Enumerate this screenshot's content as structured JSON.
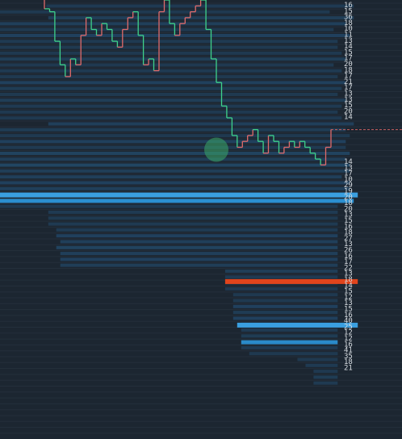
{
  "colors": {
    "background": "#1c2631",
    "grid": "#2a3642",
    "heatmap_dim": "#1f3a52",
    "heatmap_mid": "#24547a",
    "heatmap_bright": "#2b8fd0",
    "price_line_up": "#e06a6a",
    "price_line_down": "#3fd28a",
    "marker_fill": "#3aa868",
    "current_price_line": "#c86060",
    "large_ask_level": "#e0441c",
    "large_bid_level": "#3a9fe0",
    "axis_text": "#d8dde2"
  },
  "price_axis": {
    "labels_upper": [
      "16",
      "15",
      "36",
      "18",
      "10",
      "11",
      "13",
      "14",
      "15",
      "17",
      "20",
      "18",
      "17",
      "21",
      "17",
      "13",
      "13",
      "15",
      "20",
      "14"
    ],
    "labels_lower": [
      "14",
      "13",
      "17",
      "10",
      "29",
      "19",
      "20",
      "18",
      "20",
      "13",
      "15",
      "16",
      "18",
      "27",
      "13",
      "26",
      "16",
      "17",
      "22",
      "13",
      "18",
      "14",
      "15",
      "12",
      "13",
      "15",
      "16",
      "40",
      "25",
      "12",
      "12",
      "16",
      "41",
      "35",
      "18",
      "21"
    ]
  },
  "orderbook_levels": [
    {
      "start": 0.115,
      "end": 0.88,
      "intensity": 0.35
    },
    {
      "start": 0.0,
      "end": 0.82,
      "intensity": 0.3
    },
    {
      "start": 0.12,
      "end": 0.88,
      "intensity": 0.45
    },
    {
      "start": 0.0,
      "end": 0.86,
      "intensity": 0.5
    },
    {
      "start": 0.0,
      "end": 0.83,
      "intensity": 0.3
    },
    {
      "start": 0.0,
      "end": 0.87,
      "intensity": 0.55
    },
    {
      "start": 0.0,
      "end": 0.84,
      "intensity": 0.35
    },
    {
      "start": 0.0,
      "end": 0.84,
      "intensity": 0.3
    },
    {
      "start": 0.0,
      "end": 0.85,
      "intensity": 0.3
    },
    {
      "start": 0.0,
      "end": 0.86,
      "intensity": 0.45
    },
    {
      "start": 0.0,
      "end": 0.83,
      "intensity": 0.3
    },
    {
      "start": 0.0,
      "end": 0.85,
      "intensity": 0.35
    },
    {
      "start": 0.0,
      "end": 0.84,
      "intensity": 0.3
    },
    {
      "start": 0.0,
      "end": 0.86,
      "intensity": 0.55
    },
    {
      "start": 0.0,
      "end": 0.85,
      "intensity": 0.4
    },
    {
      "start": 0.0,
      "end": 0.84,
      "intensity": 0.3
    },
    {
      "start": 0.0,
      "end": 0.86,
      "intensity": 0.45
    },
    {
      "start": 0.0,
      "end": 0.85,
      "intensity": 0.35
    },
    {
      "start": 0.0,
      "end": 0.84,
      "intensity": 0.3
    },
    {
      "start": 0.0,
      "end": 0.85,
      "intensity": 0.3
    },
    {
      "start": 0.12,
      "end": 0.88,
      "intensity": 0.5
    },
    {
      "start": 0.0,
      "end": 0.86,
      "intensity": 0.4
    },
    {
      "start": 0.0,
      "end": 0.87,
      "intensity": 0.3
    },
    {
      "start": 0.0,
      "end": 0.86,
      "intensity": 0.55
    },
    {
      "start": 0.0,
      "end": 0.86,
      "intensity": 0.35
    },
    {
      "start": 0.0,
      "end": 0.87,
      "intensity": 0.6
    },
    {
      "start": 0.0,
      "end": 0.86,
      "intensity": 0.45
    },
    {
      "start": 0.0,
      "end": 0.87,
      "intensity": 0.65
    },
    {
      "start": 0.0,
      "end": 0.87,
      "intensity": 0.45
    },
    {
      "start": 0.0,
      "end": 0.85,
      "intensity": 0.5
    },
    {
      "start": 0.0,
      "end": 0.87,
      "intensity": 0.55
    },
    {
      "start": 0.0,
      "end": 0.87,
      "intensity": 0.5
    },
    {
      "start": 0.0,
      "end": 0.88,
      "intensity": 1.0
    },
    {
      "start": 0.0,
      "end": 0.88,
      "intensity": 1.0
    },
    {
      "start": 0.0,
      "end": 0.84,
      "intensity": 0.3
    },
    {
      "start": 0.12,
      "end": 0.84,
      "intensity": 0.35
    },
    {
      "start": 0.12,
      "end": 0.84,
      "intensity": 0.3
    },
    {
      "start": 0.12,
      "end": 0.84,
      "intensity": 0.35
    },
    {
      "start": 0.14,
      "end": 0.84,
      "intensity": 0.35
    },
    {
      "start": 0.14,
      "end": 0.84,
      "intensity": 0.55
    },
    {
      "start": 0.15,
      "end": 0.84,
      "intensity": 0.5
    },
    {
      "start": 0.14,
      "end": 0.84,
      "intensity": 0.6
    },
    {
      "start": 0.15,
      "end": 0.84,
      "intensity": 0.5
    },
    {
      "start": 0.15,
      "end": 0.84,
      "intensity": 0.55
    },
    {
      "start": 0.15,
      "end": 0.84,
      "intensity": 0.45
    },
    {
      "start": 0.56,
      "end": 0.84,
      "intensity": 0.45
    },
    {
      "start": 0.56,
      "end": 0.84,
      "intensity": 0.35
    },
    {
      "start": 0.56,
      "end": 0.84,
      "intensity": 0.3
    },
    {
      "start": 0.56,
      "end": 0.84,
      "intensity": 0.3
    },
    {
      "start": 0.58,
      "end": 0.84,
      "intensity": 0.3
    },
    {
      "start": 0.58,
      "end": 0.84,
      "intensity": 0.3
    },
    {
      "start": 0.58,
      "end": 0.84,
      "intensity": 0.55
    },
    {
      "start": 0.58,
      "end": 0.84,
      "intensity": 0.4
    },
    {
      "start": 0.58,
      "end": 0.84,
      "intensity": 0.55
    },
    {
      "start": 0.6,
      "end": 0.84,
      "intensity": 0.4
    },
    {
      "start": 0.6,
      "end": 0.84,
      "intensity": 0.35
    },
    {
      "start": 0.6,
      "end": 0.84,
      "intensity": 0.4
    },
    {
      "start": 0.6,
      "end": 0.84,
      "intensity": 0.9
    },
    {
      "start": 0.6,
      "end": 0.84,
      "intensity": 0.35
    },
    {
      "start": 0.62,
      "end": 0.84,
      "intensity": 0.3
    },
    {
      "start": 0.74,
      "end": 0.84,
      "intensity": 0.3
    },
    {
      "start": 0.76,
      "end": 0.84,
      "intensity": 0.35
    },
    {
      "start": 0.78,
      "end": 0.84,
      "intensity": 0.3
    },
    {
      "start": 0.78,
      "end": 0.84,
      "intensity": 0.4
    },
    {
      "start": 0.78,
      "end": 0.84,
      "intensity": 0.35
    }
  ],
  "large_orders": [
    {
      "side": "bid",
      "level": 32.0,
      "start": 0.0,
      "end": 0.89
    },
    {
      "side": "ask",
      "level": 46.7,
      "start": 0.56,
      "end": 0.89
    },
    {
      "side": "bid",
      "level": 54.1,
      "start": 0.59,
      "end": 0.89
    }
  ],
  "price_series": [
    [
      0,
      1.5
    ],
    [
      1,
      2
    ],
    [
      2,
      7
    ],
    [
      3,
      11
    ],
    [
      4,
      13
    ],
    [
      5,
      10
    ],
    [
      6,
      11
    ],
    [
      7,
      6
    ],
    [
      8,
      3
    ],
    [
      9,
      5
    ],
    [
      10,
      6
    ],
    [
      11,
      4
    ],
    [
      12,
      5
    ],
    [
      13,
      7
    ],
    [
      14,
      8
    ],
    [
      15,
      5
    ],
    [
      16,
      3
    ],
    [
      17,
      2
    ],
    [
      18,
      6
    ],
    [
      19,
      11
    ],
    [
      20,
      10
    ],
    [
      21,
      12
    ],
    [
      22,
      2
    ],
    [
      23,
      0
    ],
    [
      24,
      4
    ],
    [
      25,
      6
    ],
    [
      26,
      4
    ],
    [
      27,
      3
    ],
    [
      28,
      2
    ],
    [
      29,
      1
    ],
    [
      30,
      0
    ],
    [
      31,
      5
    ],
    [
      32,
      10
    ],
    [
      33,
      14
    ],
    [
      34,
      18
    ],
    [
      35,
      20
    ],
    [
      36,
      23
    ],
    [
      37,
      25
    ],
    [
      38,
      24
    ],
    [
      39,
      23
    ],
    [
      40,
      22
    ],
    [
      41,
      24
    ],
    [
      42,
      26
    ],
    [
      43,
      23
    ],
    [
      44,
      24
    ],
    [
      45,
      26
    ],
    [
      46,
      25
    ],
    [
      47,
      24
    ],
    [
      48,
      25
    ],
    [
      49,
      24
    ],
    [
      50,
      25
    ],
    [
      51,
      26
    ],
    [
      52,
      27
    ],
    [
      53,
      28
    ],
    [
      54,
      25
    ],
    [
      55,
      22
    ]
  ],
  "current_price_level": 22
}
